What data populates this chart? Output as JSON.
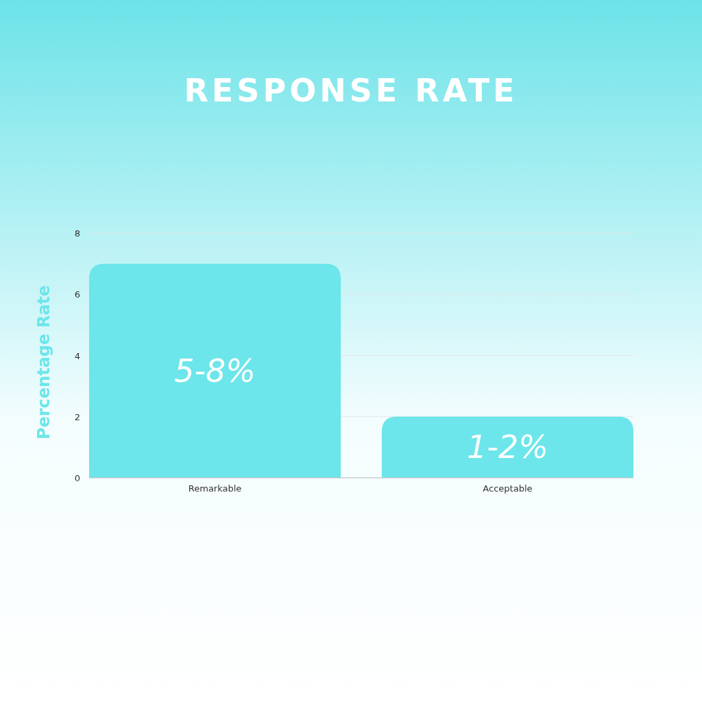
{
  "chart_data": {
    "type": "bar",
    "title": "RESPONSE RATE",
    "ylabel": "Percentage Rate",
    "categories": [
      "Remarkable",
      "Acceptable"
    ],
    "values": [
      7,
      2
    ],
    "annotations": [
      "5-8%",
      "1-2%"
    ],
    "color": "#6ce6ea",
    "ylim": [
      0,
      8
    ],
    "yticks": [
      0,
      2,
      4,
      6,
      8
    ],
    "grid": "y"
  }
}
